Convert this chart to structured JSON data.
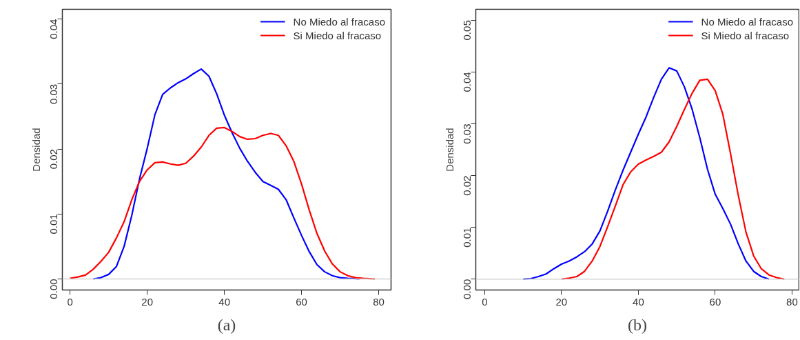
{
  "chart_data": [
    {
      "type": "line",
      "ylabel": "Densidad",
      "xlim": [
        -2,
        83.2
      ],
      "ylim": [
        -0.0017,
        0.0415
      ],
      "xticks": [
        0,
        20,
        40,
        60,
        80
      ],
      "yticks": [
        {
          "value": 0,
          "label": "0.00"
        },
        {
          "value": 0.01,
          "label": "0.01"
        },
        {
          "value": 0.02,
          "label": "0.02"
        },
        {
          "value": 0.03,
          "label": "0.03"
        },
        {
          "value": 0.04,
          "label": "0.04"
        }
      ],
      "grid": false,
      "legend": "top right",
      "line_style": "solid",
      "annotations": [
        "(a)"
      ],
      "ref_lines": [
        {
          "axis": "y",
          "value": 0,
          "color": "#d3d3d3"
        }
      ],
      "series": [
        {
          "name": "No Miedo al fracaso",
          "color": "#0000ff",
          "x": [
            6,
            8,
            10,
            12,
            14,
            16,
            18,
            20,
            22,
            24,
            26,
            28,
            30,
            32,
            34,
            36,
            38,
            40,
            42,
            44,
            46,
            48,
            50,
            52,
            54,
            56,
            58,
            60,
            62,
            64,
            66,
            68,
            70,
            72,
            75
          ],
          "values": [
            0,
            0.0002,
            0.0007,
            0.0019,
            0.005,
            0.0098,
            0.0154,
            0.0201,
            0.0253,
            0.0284,
            0.0294,
            0.0302,
            0.0308,
            0.0316,
            0.0323,
            0.0312,
            0.0285,
            0.0252,
            0.0225,
            0.0201,
            0.0181,
            0.0164,
            0.015,
            0.0144,
            0.0138,
            0.0122,
            0.0094,
            0.0067,
            0.0042,
            0.0022,
            0.0011,
            0.0005,
            0.0002,
            0.0001,
            0
          ]
        },
        {
          "name": "Si Miedo al fracaso",
          "color": "#ff0000",
          "x": [
            0,
            2,
            4,
            6,
            8,
            10,
            12,
            14,
            16,
            18,
            20,
            22,
            24,
            26,
            28,
            30,
            32,
            34,
            36,
            38,
            40,
            42,
            44,
            46,
            48,
            50,
            52,
            54,
            56,
            58,
            60,
            62,
            64,
            66,
            68,
            70,
            72,
            74,
            76,
            79
          ],
          "values": [
            0.0001,
            0.0003,
            0.0006,
            0.0015,
            0.0027,
            0.0041,
            0.0063,
            0.0088,
            0.0122,
            0.015,
            0.0168,
            0.0179,
            0.018,
            0.0177,
            0.0175,
            0.0178,
            0.0189,
            0.0203,
            0.0221,
            0.0232,
            0.0233,
            0.0227,
            0.0219,
            0.0215,
            0.0216,
            0.0221,
            0.0224,
            0.0221,
            0.0205,
            0.0181,
            0.0146,
            0.0106,
            0.007,
            0.0043,
            0.0023,
            0.0011,
            0.0005,
            0.0002,
            0.0001,
            0
          ]
        }
      ]
    },
    {
      "type": "line",
      "ylabel": "Densidad",
      "xlim": [
        -2.3,
        81.8
      ],
      "ylim": [
        -0.0021,
        0.0521
      ],
      "xticks": [
        0,
        20,
        40,
        60,
        80
      ],
      "yticks": [
        {
          "value": 0,
          "label": "0.00"
        },
        {
          "value": 0.01,
          "label": "0.01"
        },
        {
          "value": 0.02,
          "label": "0.02"
        },
        {
          "value": 0.03,
          "label": "0.03"
        },
        {
          "value": 0.04,
          "label": "0.04"
        },
        {
          "value": 0.05,
          "label": "0.05"
        }
      ],
      "grid": false,
      "legend": "top right",
      "line_style": "solid",
      "annotations": [
        "(b)"
      ],
      "ref_lines": [
        {
          "axis": "y",
          "value": 0,
          "color": "#d3d3d3"
        }
      ],
      "series": [
        {
          "name": "No Miedo al fracaso",
          "color": "#0000ff",
          "x": [
            10,
            12,
            14,
            16,
            18,
            20,
            22,
            24,
            26,
            28,
            30,
            32,
            34,
            36,
            38,
            40,
            42,
            44,
            46,
            48,
            50,
            52,
            54,
            56,
            58,
            60,
            62,
            64,
            66,
            68,
            70,
            72,
            74
          ],
          "values": [
            0,
            0.0001,
            0.0005,
            0.001,
            0.002,
            0.0029,
            0.0035,
            0.0043,
            0.0053,
            0.0068,
            0.0093,
            0.0131,
            0.0172,
            0.021,
            0.0245,
            0.028,
            0.0313,
            0.0351,
            0.0386,
            0.0408,
            0.0402,
            0.0371,
            0.0328,
            0.0273,
            0.0212,
            0.0164,
            0.0136,
            0.0106,
            0.0068,
            0.0035,
            0.0015,
            0.0005,
            0
          ]
        },
        {
          "name": "Si Miedo al fracaso",
          "color": "#ff0000",
          "x": [
            20,
            22,
            24,
            26,
            28,
            30,
            32,
            34,
            36,
            38,
            40,
            42,
            44,
            46,
            48,
            50,
            52,
            54,
            56,
            58,
            60,
            62,
            64,
            66,
            68,
            70,
            72,
            74,
            76,
            78
          ],
          "values": [
            0,
            0.0002,
            0.0005,
            0.0015,
            0.0035,
            0.0063,
            0.0101,
            0.0141,
            0.0182,
            0.0207,
            0.0222,
            0.023,
            0.0237,
            0.0245,
            0.0265,
            0.0295,
            0.0328,
            0.0359,
            0.0384,
            0.0386,
            0.0364,
            0.0318,
            0.0242,
            0.0162,
            0.0091,
            0.0045,
            0.002,
            0.0008,
            0.0003,
            0
          ]
        }
      ]
    }
  ]
}
